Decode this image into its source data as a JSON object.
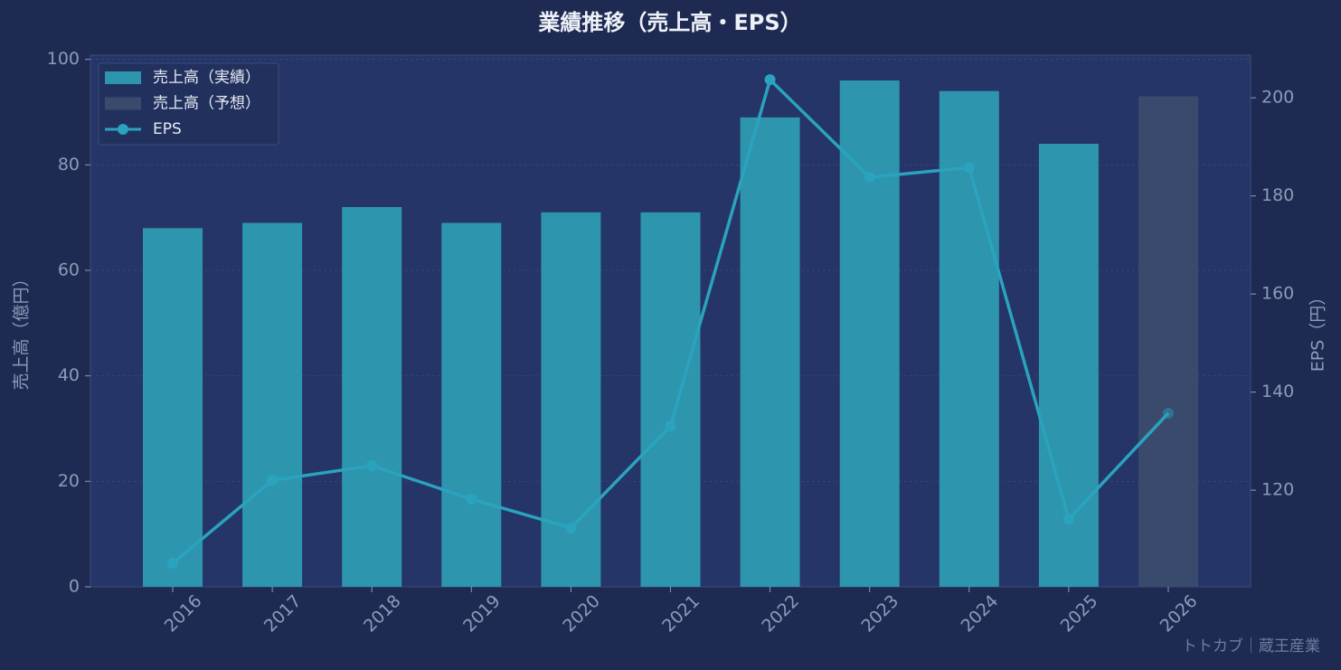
{
  "chart_data": {
    "type": "bar",
    "title": "業績推移（売上高・EPS）",
    "categories": [
      "2016",
      "2017",
      "2018",
      "2019",
      "2020",
      "2021",
      "2022",
      "2023",
      "2024",
      "2025",
      "2026"
    ],
    "series": [
      {
        "name": "売上高（実績）",
        "type": "bar",
        "color": "#2e95ae",
        "values": [
          68,
          69,
          72,
          69,
          71,
          71,
          89,
          96,
          94,
          84,
          null
        ]
      },
      {
        "name": "売上高（予想）",
        "type": "bar",
        "color": "#3a4a6c",
        "values": [
          null,
          null,
          null,
          null,
          null,
          null,
          null,
          null,
          null,
          null,
          93
        ]
      },
      {
        "name": "EPS",
        "type": "line",
        "axis": "y2",
        "color": "#2aa3bf",
        "values": [
          105.1,
          122,
          125,
          118.2,
          112.3,
          133.1,
          203.7,
          183.8,
          185.8,
          114.1,
          135.7
        ]
      }
    ],
    "ylabel": "売上高（億円）",
    "y2label": "EPS（円）",
    "ylim": [
      0,
      100.8
    ],
    "yticks": [
      0,
      20,
      40,
      60,
      80,
      100
    ],
    "y2lim": [
      100.3,
      208.7
    ],
    "y2ticks": [
      120,
      140,
      160,
      180,
      200
    ],
    "grid": true,
    "legend": "upper-left",
    "annotation": "トトカブ｜蔵王産業"
  }
}
